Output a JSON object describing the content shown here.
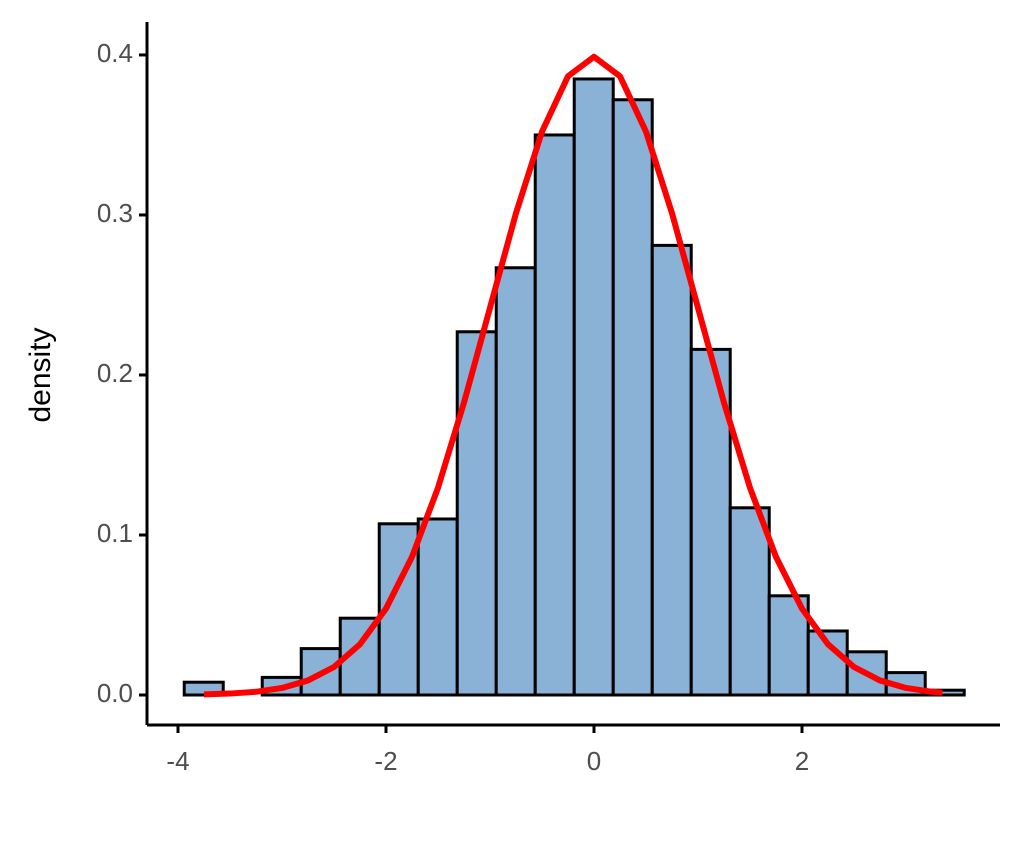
{
  "chart_data": {
    "type": "histogram",
    "y_label": "density",
    "bins": [
      -3.94,
      -3.565,
      -3.19,
      -2.815,
      -2.44,
      -2.065,
      -1.69,
      -1.315,
      -0.94,
      -0.565,
      -0.19,
      0.185,
      0.56,
      0.935,
      1.31,
      1.685,
      2.06,
      2.435,
      2.81,
      3.185,
      3.56
    ],
    "values": [
      0.008,
      0,
      0.011,
      0.029,
      0.048,
      0.107,
      0.11,
      0.227,
      0.267,
      0.35,
      0.385,
      0.372,
      0.281,
      0.216,
      0.117,
      0.062,
      0.04,
      0.027,
      0.014,
      0.003
    ],
    "color": "#89b2d6",
    "edge_color": "#000000",
    "curve": {
      "color": "#ff0000",
      "x": [
        -3.75,
        -3.5,
        -3.25,
        -3.0,
        -2.75,
        -2.5,
        -2.25,
        -2.0,
        -1.75,
        -1.5,
        -1.25,
        -1.0,
        -0.75,
        -0.5,
        -0.25,
        0,
        0.25,
        0.5,
        0.75,
        1.0,
        1.25,
        1.5,
        1.75,
        2.0,
        2.25,
        2.5,
        2.75,
        3.0,
        3.25,
        3.35
      ],
      "y": [
        0.0004,
        0.0009,
        0.002,
        0.0044,
        0.0091,
        0.0175,
        0.0317,
        0.054,
        0.0863,
        0.1295,
        0.1827,
        0.242,
        0.3011,
        0.3521,
        0.3867,
        0.3989,
        0.3867,
        0.3521,
        0.3011,
        0.242,
        0.1827,
        0.1295,
        0.0863,
        0.054,
        0.0317,
        0.0175,
        0.0091,
        0.0044,
        0.002,
        0.0015
      ]
    },
    "xlim": [
      -4.298,
      3.904
    ],
    "ylim": [
      -0.01875,
      0.4206
    ],
    "xticks": [
      -4,
      -2,
      0,
      2
    ],
    "yticks": [
      {
        "value": 0,
        "label": "0.0"
      },
      0.1,
      0.2,
      0.3,
      0.4
    ]
  }
}
